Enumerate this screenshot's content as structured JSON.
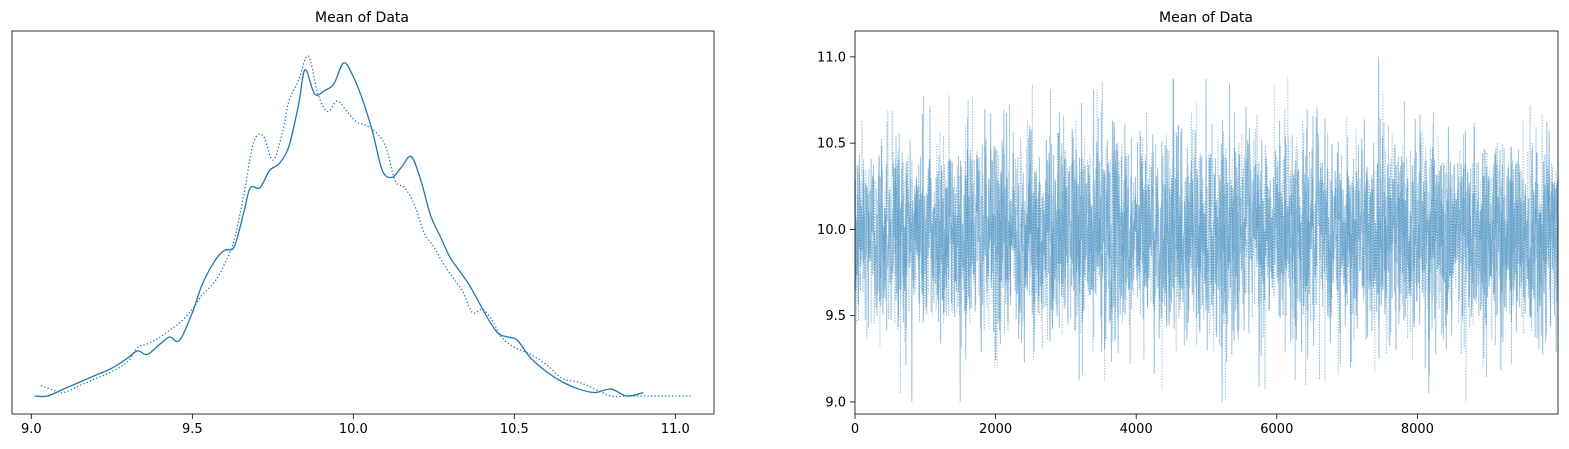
{
  "chart_data": [
    {
      "type": "line",
      "title": "Mean of Data",
      "xlabel": "",
      "ylabel": "",
      "xlim": [
        8.94,
        11.12
      ],
      "ylim": [
        0,
        1
      ],
      "yticks_visible": false,
      "x_ticks": [
        9.0,
        9.5,
        10.0,
        10.5,
        11.0
      ],
      "x_tick_labels": [
        "9.0",
        "9.5",
        "10.0",
        "10.5",
        "11.0"
      ],
      "grid": false,
      "legend": "none",
      "color": "#1f77b4",
      "series": [
        {
          "style": "solid",
          "x": [
            9.01,
            9.05,
            9.1,
            9.15,
            9.2,
            9.25,
            9.3,
            9.33,
            9.36,
            9.4,
            9.43,
            9.46,
            9.5,
            9.53,
            9.57,
            9.6,
            9.63,
            9.66,
            9.68,
            9.71,
            9.74,
            9.77,
            9.8,
            9.83,
            9.85,
            9.88,
            9.91,
            9.94,
            9.97,
            10.0,
            10.03,
            10.06,
            10.09,
            10.12,
            10.15,
            10.18,
            10.21,
            10.24,
            10.27,
            10.3,
            10.33,
            10.36,
            10.39,
            10.42,
            10.45,
            10.48,
            10.51,
            10.55,
            10.6,
            10.65,
            10.7,
            10.75,
            10.8,
            10.85,
            10.9
          ],
          "y": [
            0.0,
            0.0,
            0.02,
            0.04,
            0.06,
            0.08,
            0.11,
            0.13,
            0.12,
            0.15,
            0.17,
            0.16,
            0.24,
            0.32,
            0.39,
            0.42,
            0.43,
            0.53,
            0.6,
            0.6,
            0.65,
            0.67,
            0.72,
            0.84,
            0.94,
            0.87,
            0.88,
            0.9,
            0.96,
            0.92,
            0.85,
            0.76,
            0.65,
            0.63,
            0.66,
            0.69,
            0.62,
            0.52,
            0.46,
            0.4,
            0.36,
            0.32,
            0.27,
            0.22,
            0.18,
            0.17,
            0.16,
            0.11,
            0.07,
            0.04,
            0.02,
            0.01,
            0.02,
            0.0,
            0.01
          ]
        },
        {
          "style": "dotted",
          "x": [
            9.03,
            9.06,
            9.1,
            9.15,
            9.2,
            9.25,
            9.3,
            9.33,
            9.36,
            9.4,
            9.43,
            9.46,
            9.5,
            9.53,
            9.57,
            9.6,
            9.63,
            9.66,
            9.69,
            9.72,
            9.75,
            9.78,
            9.8,
            9.83,
            9.86,
            9.89,
            9.92,
            9.95,
            9.98,
            10.01,
            10.04,
            10.07,
            10.1,
            10.13,
            10.16,
            10.19,
            10.22,
            10.25,
            10.28,
            10.31,
            10.34,
            10.37,
            10.4,
            10.43,
            10.46,
            10.5,
            10.55,
            10.6,
            10.65,
            10.7,
            10.75,
            10.8,
            10.85,
            10.9,
            10.95,
            11.0,
            11.05
          ],
          "y": [
            0.03,
            0.02,
            0.01,
            0.03,
            0.05,
            0.07,
            0.1,
            0.14,
            0.15,
            0.17,
            0.19,
            0.21,
            0.25,
            0.29,
            0.33,
            0.38,
            0.45,
            0.58,
            0.73,
            0.75,
            0.68,
            0.76,
            0.85,
            0.91,
            0.98,
            0.87,
            0.82,
            0.85,
            0.82,
            0.79,
            0.78,
            0.76,
            0.72,
            0.62,
            0.6,
            0.55,
            0.47,
            0.43,
            0.38,
            0.34,
            0.3,
            0.24,
            0.25,
            0.22,
            0.17,
            0.14,
            0.12,
            0.09,
            0.05,
            0.04,
            0.02,
            0.0,
            0.0,
            0.0,
            0.0,
            0.0,
            0.0
          ]
        }
      ]
    },
    {
      "type": "line",
      "title": "Mean of Data",
      "xlabel": "",
      "ylabel": "",
      "xlim": [
        0,
        10000
      ],
      "ylim": [
        8.93,
        11.15
      ],
      "x_ticks": [
        0,
        2000,
        4000,
        6000,
        8000
      ],
      "x_tick_labels": [
        "0",
        "2000",
        "4000",
        "6000",
        "8000"
      ],
      "y_ticks": [
        9.0,
        9.5,
        10.0,
        10.5,
        11.0
      ],
      "y_tick_labels": [
        "9.0",
        "9.5",
        "10.0",
        "10.5",
        "11.0"
      ],
      "grid": false,
      "legend": "none",
      "color": "#1f77b4",
      "alpha": 0.45,
      "trace_summary": {
        "n_samples": 10000,
        "mean": 9.98,
        "typical_range": [
          9.35,
          10.6
        ],
        "max": 11.07,
        "min": 9.0
      },
      "series": [
        {
          "style": "solid",
          "chain": 0
        },
        {
          "style": "dotted",
          "chain": 1
        }
      ]
    }
  ]
}
